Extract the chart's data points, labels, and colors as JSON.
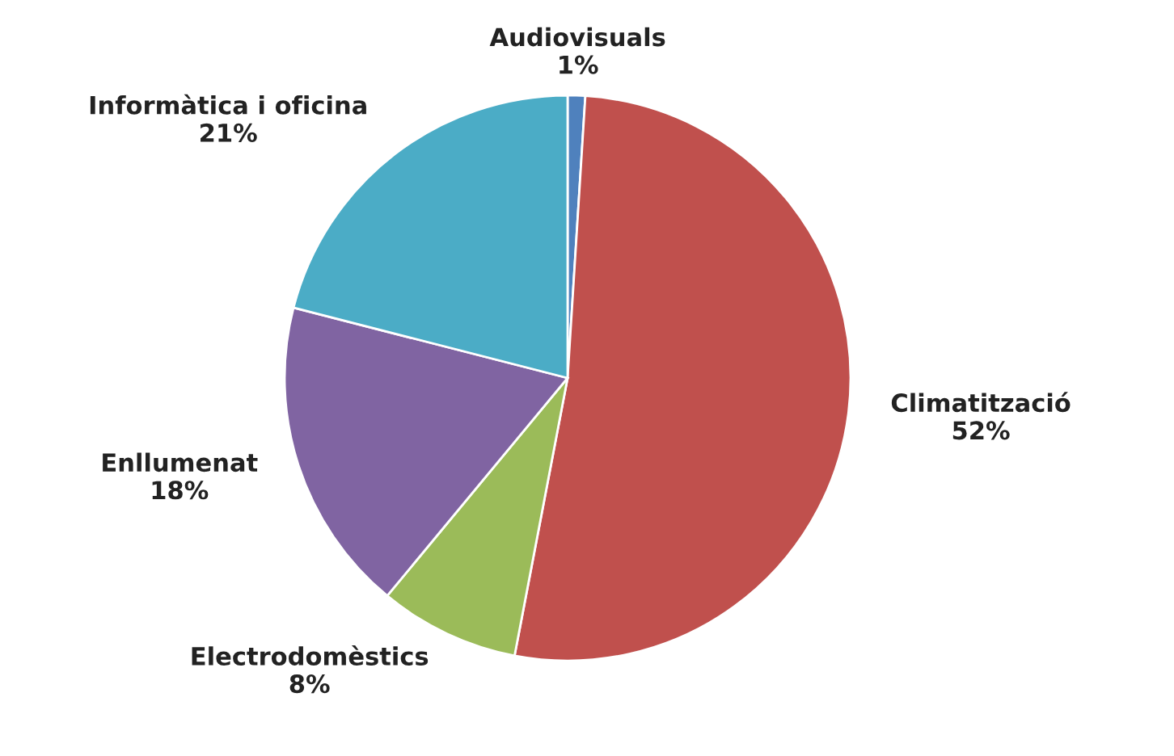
{
  "chart_data": {
    "type": "pie",
    "categories": [
      "Audiovisuals",
      "Climatització",
      "Electrodomèstics",
      "Enllumenat",
      "Informàtica i oficina"
    ],
    "values": [
      1,
      52,
      8,
      18,
      21
    ],
    "colors": [
      "#4f81bd",
      "#c0504d",
      "#9bbb59",
      "#8064a2",
      "#4bacc6"
    ],
    "value_labels": [
      "1%",
      "52%",
      "8%",
      "18%",
      "21%"
    ]
  }
}
